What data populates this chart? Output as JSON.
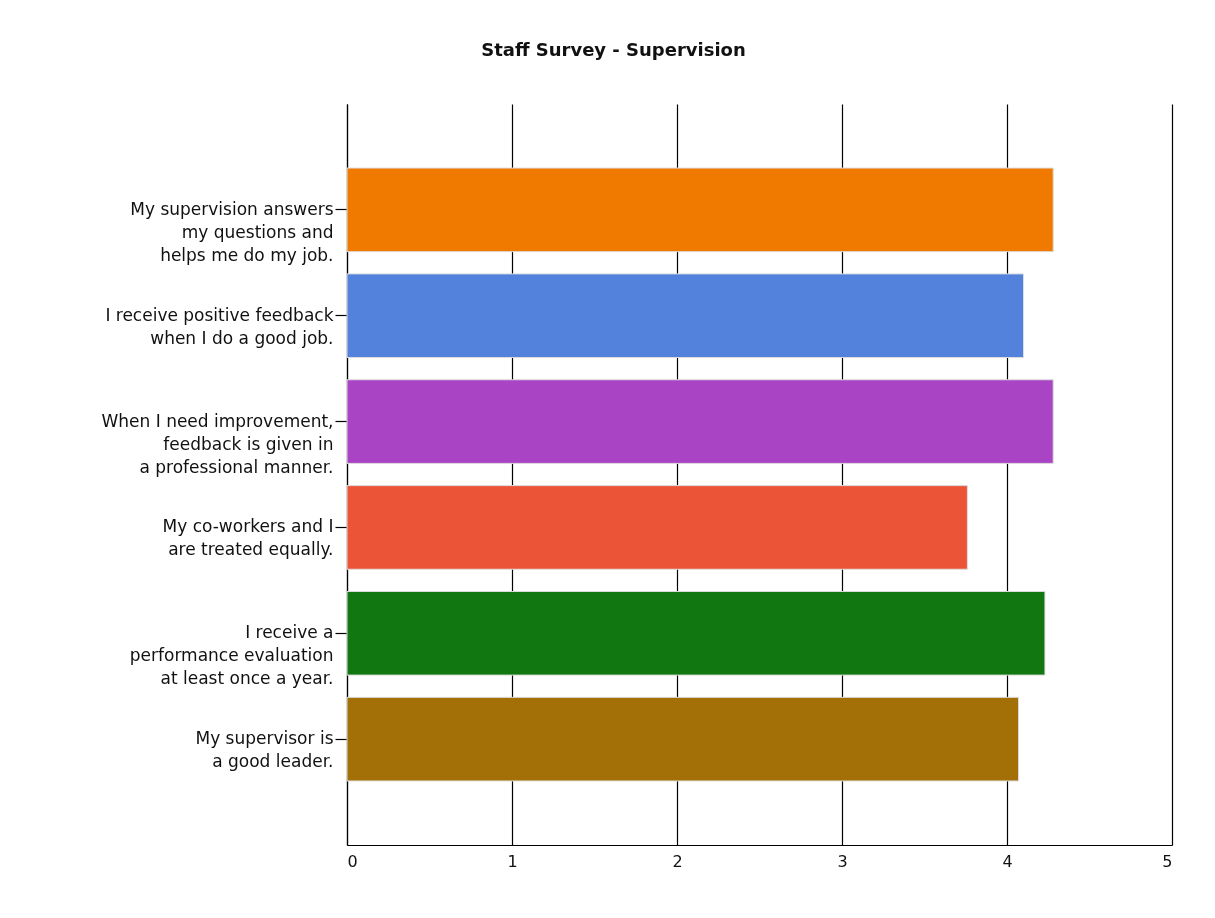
{
  "chart_data": {
    "type": "bar",
    "orientation": "horizontal",
    "title": "Staff Survey - Supervision",
    "categories": [
      "My supervision answers my questions and helps me do my job.",
      "I receive positive feedback when I do a good job.",
      "When I need improvement, feedback is given in a professional manner.",
      "My co-workers and I are treated equally.",
      "I receive a performance evaluation at least once a year.",
      "My supervisor is a good leader."
    ],
    "values": [
      4.28,
      4.1,
      4.28,
      3.76,
      4.23,
      4.07
    ],
    "colors": [
      "#f07a00",
      "#5282dc",
      "#a944c4",
      "#ec5438",
      "#117711",
      "#a27006"
    ],
    "xlim": [
      0,
      5
    ],
    "xticks": [
      0,
      1,
      2,
      3,
      4,
      5
    ],
    "grid": "x"
  }
}
